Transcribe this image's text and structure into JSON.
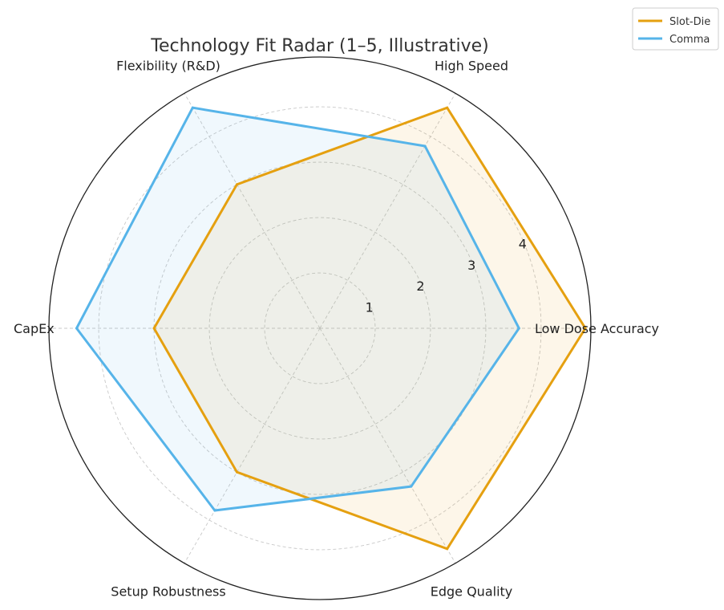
{
  "chart_data": {
    "type": "radar",
    "title": "Technology Fit Radar (1–5, Illustrative)",
    "categories": [
      "Low Dose Accuracy",
      "High Speed",
      "Flexibility (R&D)",
      "CapEx",
      "Setup Robustness",
      "Edge Quality"
    ],
    "radial_ticks": [
      "1",
      "2",
      "3",
      "4"
    ],
    "rlim": [
      0,
      4.9
    ],
    "grid": true,
    "legend_position": "top-right",
    "series": [
      {
        "name": "Slot-Die",
        "values": [
          4.8,
          4.6,
          3.0,
          3.0,
          3.0,
          4.6
        ],
        "color": "#E5A010"
      },
      {
        "name": "Comma",
        "values": [
          3.6,
          3.8,
          4.6,
          4.4,
          3.8,
          3.3
        ],
        "color": "#56B4E9"
      }
    ]
  }
}
